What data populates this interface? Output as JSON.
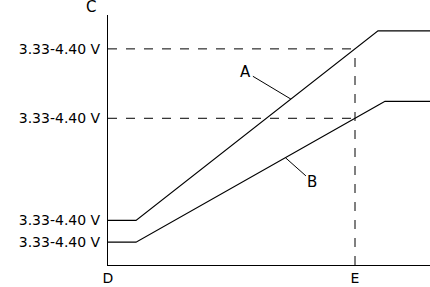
{
  "chart_data": {
    "type": "line",
    "ylabel": "C",
    "x": [
      0,
      28,
      270,
      277,
      322
    ],
    "series": [
      {
        "name": "A",
        "color": "#000000",
        "line_style": "solid",
        "values": [
          45,
          45,
          236,
          236,
          236
        ]
      },
      {
        "name": "B",
        "color": "#000000",
        "line_style": "solid",
        "values": [
          23,
          23,
          161,
          165,
          165
        ]
      }
    ],
    "xlim": [
      0,
      322
    ],
    "xticks": [
      {
        "value": 0,
        "label": "D"
      },
      {
        "value": 247,
        "label": "E"
      }
    ],
    "ylim": [
      0,
      252
    ],
    "yticks": [
      {
        "value": 23,
        "label": "3.33-4.40 V"
      },
      {
        "value": 45,
        "label": "3.33-4.40 V"
      },
      {
        "value": 148,
        "label": "3.33-4.40 V"
      },
      {
        "value": 218,
        "label": "3.33-4.40 V"
      }
    ],
    "grid": false
  }
}
